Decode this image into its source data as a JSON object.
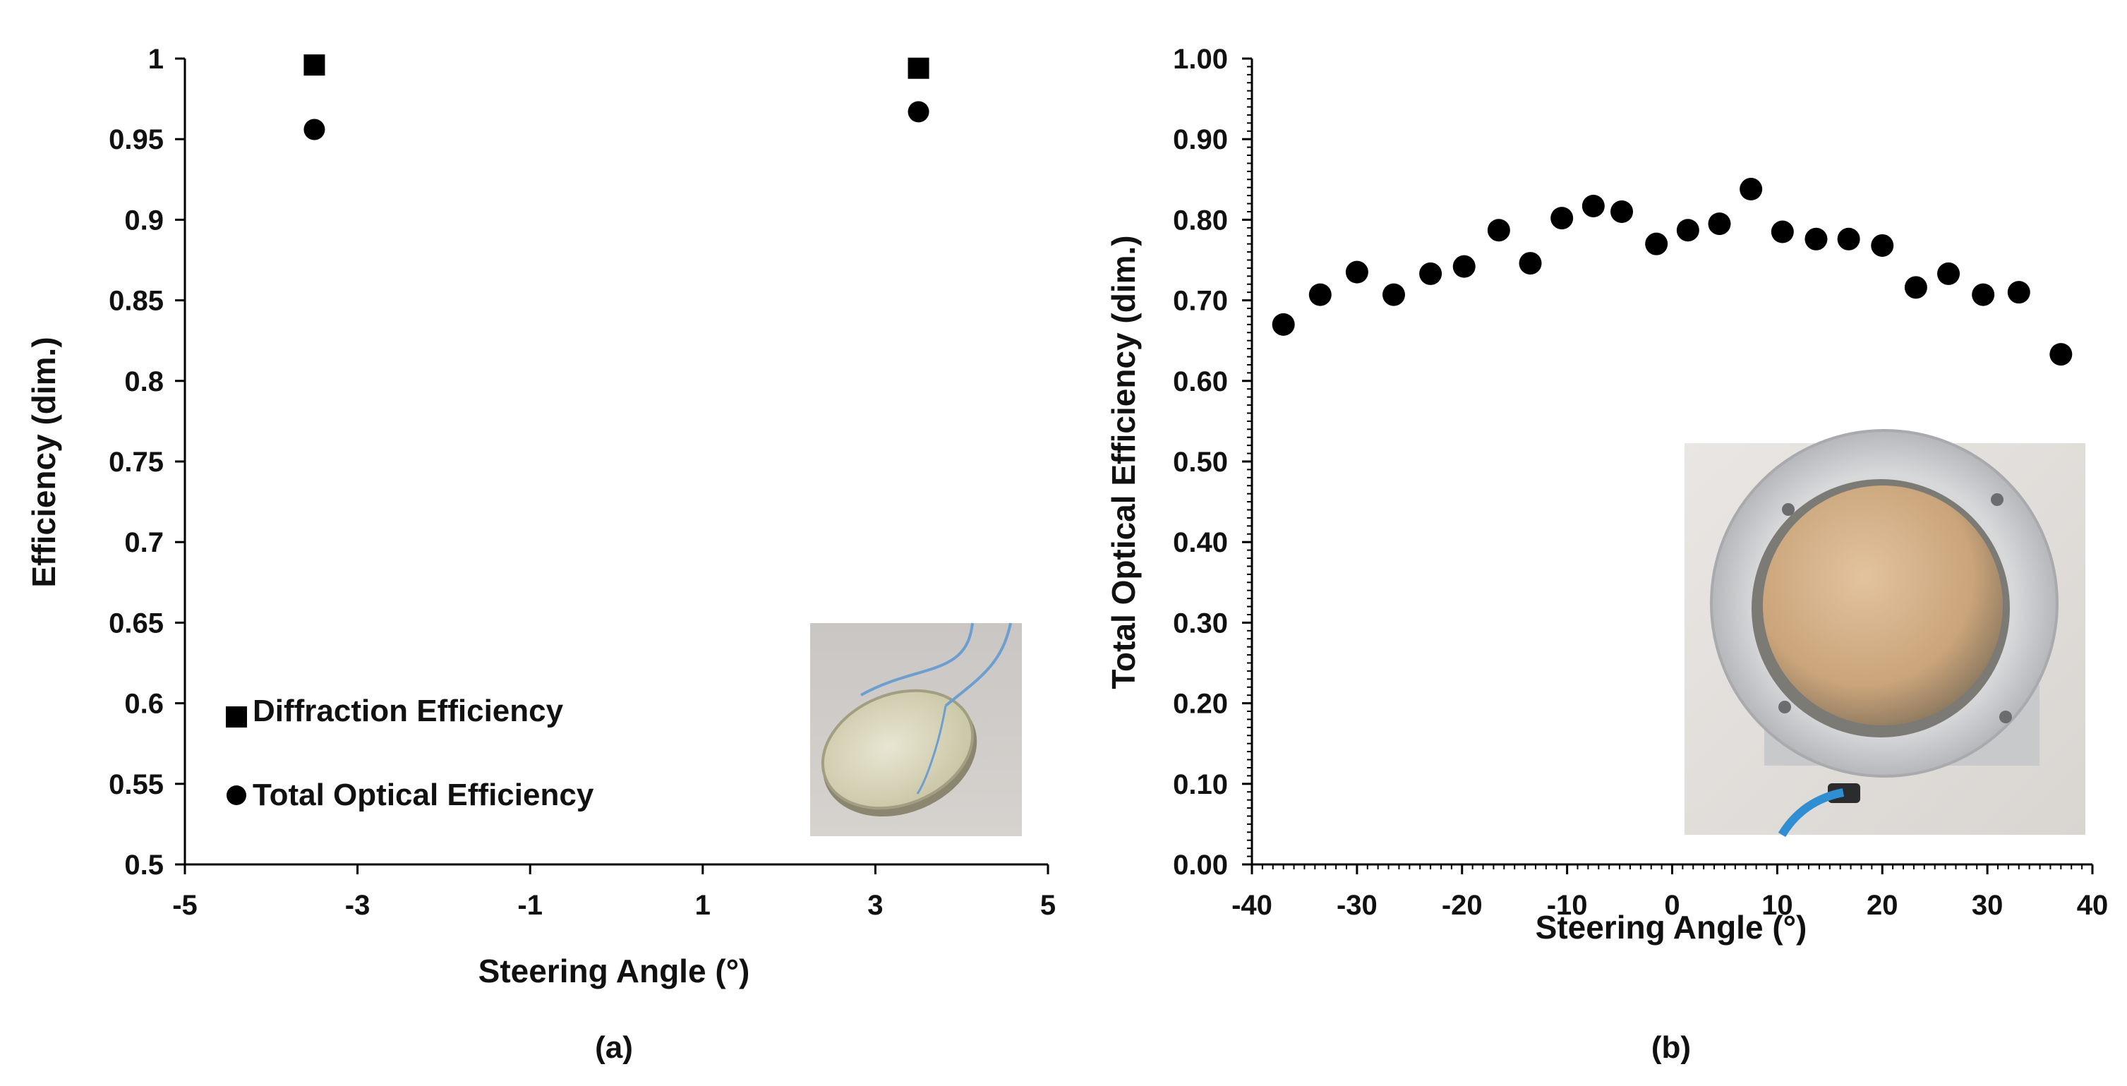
{
  "chart_data": [
    {
      "type": "scatter",
      "panel_label": "(a)",
      "xlabel": "Steering Angle (°)",
      "ylabel": "Efficiency (dim.)",
      "xlim": [
        -5,
        5
      ],
      "ylim": [
        0.5,
        1
      ],
      "x_ticks": [
        -5,
        -3,
        -1,
        1,
        3,
        5
      ],
      "x_tick_labels": [
        "-5",
        "-3",
        "-1",
        "1",
        "3",
        "5"
      ],
      "y_ticks": [
        0.5,
        0.55,
        0.6,
        0.65,
        0.7,
        0.75,
        0.8,
        0.85,
        0.9,
        0.95,
        1
      ],
      "y_tick_labels": [
        "0.5",
        "0.55",
        "0.6",
        "0.65",
        "0.7",
        "0.75",
        "0.8",
        "0.85",
        "0.9",
        "0.95",
        "1"
      ],
      "legend_position": "bottom-left",
      "series": [
        {
          "name": "Diffraction Efficiency",
          "marker": "square",
          "color": "#000000",
          "x": [
            -3.5,
            3.5
          ],
          "y": [
            0.996,
            0.994
          ]
        },
        {
          "name": "Total Optical Efficiency",
          "marker": "circle",
          "color": "#000000",
          "x": [
            -3.5,
            3.5
          ],
          "y": [
            0.956,
            0.967
          ]
        }
      ],
      "inset": {
        "description_icon": "lens-photo-icon"
      }
    },
    {
      "type": "scatter",
      "panel_label": "(b)",
      "xlabel": "Steering Angle (°)",
      "ylabel": "Total Optical Efficiency (dim.)",
      "xlim": [
        -40,
        40
      ],
      "ylim": [
        0,
        1
      ],
      "x_ticks": [
        -40,
        -30,
        -20,
        -10,
        0,
        10,
        20,
        30,
        40
      ],
      "x_tick_labels": [
        "-40",
        "-30",
        "-20",
        "-10",
        "0",
        "10",
        "20",
        "30",
        "40"
      ],
      "y_ticks": [
        0,
        0.1,
        0.2,
        0.3,
        0.4,
        0.5,
        0.6,
        0.7,
        0.8,
        0.9,
        1
      ],
      "y_tick_labels": [
        "0.00",
        "0.10",
        "0.20",
        "0.30",
        "0.40",
        "0.50",
        "0.60",
        "0.70",
        "0.80",
        "0.90",
        "1.00"
      ],
      "series": [
        {
          "name": "Total Optical Efficiency",
          "marker": "circle",
          "color": "#000000",
          "x": [
            -37,
            -33.5,
            -30,
            -26.5,
            -23,
            -19.8,
            -16.5,
            -13.5,
            -10.5,
            -7.5,
            -4.8,
            -1.5,
            1.5,
            4.5,
            7.5,
            10.5,
            13.7,
            16.8,
            20,
            23.2,
            26.3,
            29.6,
            33,
            37
          ],
          "y": [
            0.67,
            0.707,
            0.735,
            0.707,
            0.733,
            0.742,
            0.787,
            0.746,
            0.802,
            0.817,
            0.81,
            0.77,
            0.787,
            0.795,
            0.838,
            0.785,
            0.776,
            0.776,
            0.768,
            0.716,
            0.733,
            0.707,
            0.71,
            0.633
          ]
        }
      ],
      "inset": {
        "description_icon": "mounted-lens-photo-icon"
      }
    }
  ]
}
